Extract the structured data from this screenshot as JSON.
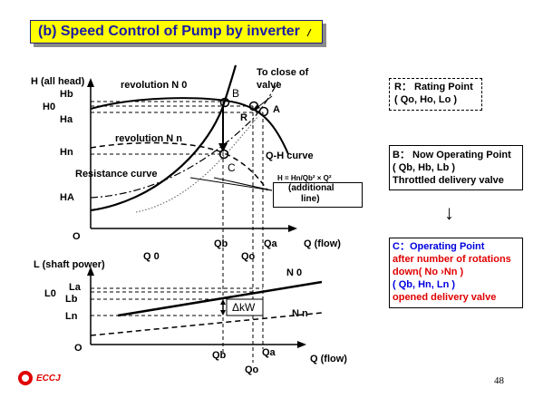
{
  "title": "(b) Speed Control of Pump by inverter",
  "upper_graph": {
    "y_axis_label": "H (all head)",
    "x_axis_label": "Q (flow)",
    "origin": "O",
    "y_ticks": {
      "hb": "Hb",
      "h0": "H0",
      "ha": "Ha",
      "hn": "Hn",
      "hA": "HA"
    },
    "x_ticks": {
      "qb": "Qb",
      "qa": "Qa",
      "qo": "Qo",
      "q0": "Q 0"
    },
    "labels": {
      "revolution_n0": "revolution N 0",
      "revolution_nn": "revolution N n",
      "resistance_curve": "Resistance curve",
      "qh_curve": "Q-H curve",
      "to_close_valve_1": "To close of",
      "to_close_valve_2": "valve",
      "point_b": "B",
      "point_r": "R",
      "point_a": "A",
      "point_c": "C",
      "formula": "H = Hn/Qb² × Q²",
      "additional_1": "(additional",
      "additional_2": "line)"
    }
  },
  "lower_graph": {
    "y_axis_label": "L (shaft power)",
    "x_axis_label": "Q (flow)",
    "origin": "O",
    "y_ticks": {
      "l0": "L0",
      "la": "La",
      "lb": "Lb",
      "ln": "Ln"
    },
    "x_ticks": {
      "qb": "Qb",
      "qa": "Qa",
      "qo": "Qo"
    },
    "labels": {
      "n0": "N 0",
      "nn": "N n",
      "delta_kw": "ΔkW"
    }
  },
  "legend": {
    "r_box": {
      "line1": "R： Rating Point",
      "line2": "( Qo, Ho, Lo )"
    },
    "b_box": {
      "line1": "B： Now Operating Point",
      "line2": "( Qb, Hb, Lb )",
      "line3": "Throttled delivery valve"
    },
    "arrow": "↓",
    "c_box": {
      "line1": "C：Operating Point",
      "line2": " after number of rotations",
      "line3": " down( No  ›Nn )",
      "line4": " ( Qb, Hn, Ln )",
      "line5": " opened delivery valve"
    }
  },
  "footer": {
    "logo_text": "ECCJ",
    "page_number": "48"
  },
  "colors": {
    "title_bg": "#ffff00",
    "title_text": "#1a1aa8",
    "red": "#e00000",
    "blue": "#0000e0"
  }
}
